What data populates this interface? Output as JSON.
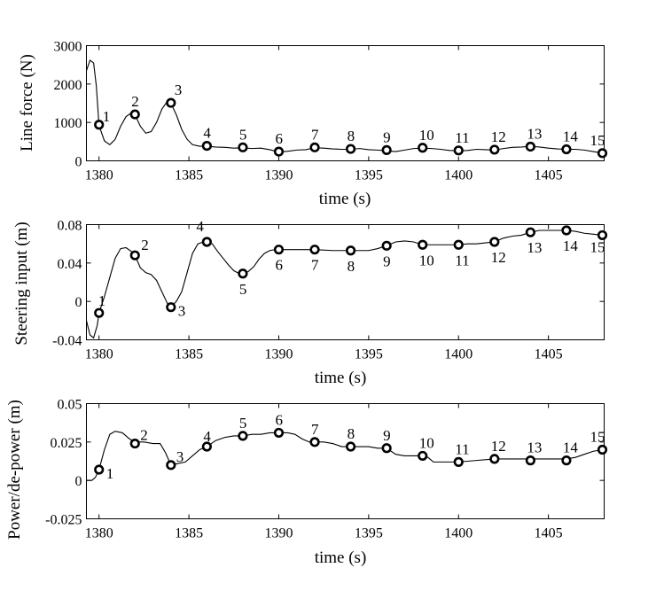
{
  "chart_data": [
    {
      "type": "line",
      "title": "",
      "xlabel": "time (s)",
      "ylabel": "Line force (N)",
      "xlim": [
        1379.3,
        1408.1
      ],
      "ylim": [
        0,
        3000
      ],
      "xticks": [
        1380,
        1385,
        1390,
        1395,
        1400,
        1405
      ],
      "yticks": [
        0,
        1000,
        2000,
        3000
      ],
      "ytick_labels": [
        "0",
        "1000",
        "2000",
        "3000"
      ],
      "series": [
        {
          "name": "line force",
          "x": [
            1379.3,
            1379.5,
            1379.7,
            1379.85,
            1380.0,
            1380.3,
            1380.6,
            1380.9,
            1381.2,
            1381.5,
            1381.8,
            1382.0,
            1382.3,
            1382.6,
            1382.9,
            1383.2,
            1383.5,
            1383.8,
            1384.0,
            1384.3,
            1384.6,
            1384.9,
            1385.2,
            1385.6,
            1386.0,
            1386.5,
            1387.0,
            1387.5,
            1388.0,
            1388.5,
            1389.0,
            1389.5,
            1390.0,
            1390.5,
            1391.0,
            1391.5,
            1392.0,
            1392.5,
            1393.0,
            1393.5,
            1394.0,
            1394.5,
            1395.0,
            1395.5,
            1396.0,
            1396.5,
            1397.0,
            1397.5,
            1398.0,
            1398.5,
            1399.0,
            1399.5,
            1400.0,
            1400.5,
            1401.0,
            1401.5,
            1402.0,
            1402.5,
            1403.0,
            1403.5,
            1404.0,
            1404.5,
            1405.0,
            1405.5,
            1406.0,
            1406.5,
            1407.0,
            1407.5,
            1408.0,
            1408.1
          ],
          "y": [
            2350,
            2620,
            2550,
            1950,
            920,
            520,
            420,
            560,
            900,
            1150,
            1250,
            1200,
            900,
            720,
            760,
            1000,
            1350,
            1550,
            1500,
            1200,
            820,
            560,
            420,
            380,
            380,
            360,
            350,
            330,
            340,
            320,
            330,
            290,
            230,
            250,
            280,
            290,
            340,
            330,
            310,
            300,
            300,
            320,
            290,
            280,
            260,
            240,
            280,
            320,
            330,
            320,
            300,
            270,
            260,
            270,
            300,
            290,
            280,
            320,
            350,
            360,
            380,
            360,
            330,
            310,
            300,
            300,
            280,
            240,
            200,
            190
          ]
        }
      ],
      "markers": [
        {
          "label": "1",
          "x": 1380,
          "y": 940
        },
        {
          "label": "2",
          "x": 1382,
          "y": 1210
        },
        {
          "label": "3",
          "x": 1384,
          "y": 1510
        },
        {
          "label": "4",
          "x": 1386,
          "y": 390
        },
        {
          "label": "5",
          "x": 1388,
          "y": 350
        },
        {
          "label": "6",
          "x": 1390,
          "y": 240
        },
        {
          "label": "7",
          "x": 1392,
          "y": 350
        },
        {
          "label": "8",
          "x": 1394,
          "y": 310
        },
        {
          "label": "9",
          "x": 1396,
          "y": 280
        },
        {
          "label": "10",
          "x": 1398,
          "y": 340
        },
        {
          "label": "11",
          "x": 1400,
          "y": 270
        },
        {
          "label": "12",
          "x": 1402,
          "y": 290
        },
        {
          "label": "13",
          "x": 1404,
          "y": 370
        },
        {
          "label": "14",
          "x": 1406,
          "y": 300
        },
        {
          "label": "15",
          "x": 1408,
          "y": 200
        }
      ]
    },
    {
      "type": "line",
      "title": "",
      "xlabel": "time (s)",
      "ylabel": "Steering input (m)",
      "xlim": [
        1379.3,
        1408.1
      ],
      "ylim": [
        -0.04,
        0.08
      ],
      "xticks": [
        1380,
        1385,
        1390,
        1395,
        1400,
        1405
      ],
      "yticks": [
        -0.04,
        0,
        0.04,
        0.08
      ],
      "ytick_labels": [
        "-0.04",
        "0",
        "0.04",
        "0.08"
      ],
      "series": [
        {
          "name": "steering input",
          "x": [
            1379.3,
            1379.5,
            1379.7,
            1379.9,
            1380.0,
            1380.3,
            1380.6,
            1380.9,
            1381.2,
            1381.5,
            1381.8,
            1382.0,
            1382.3,
            1382.6,
            1382.9,
            1383.2,
            1383.5,
            1383.8,
            1384.0,
            1384.3,
            1384.6,
            1384.9,
            1385.2,
            1385.5,
            1385.8,
            1386.0,
            1386.3,
            1386.6,
            1386.9,
            1387.2,
            1387.5,
            1387.8,
            1388.0,
            1388.3,
            1388.6,
            1388.9,
            1389.2,
            1389.5,
            1389.8,
            1390.0,
            1391.0,
            1392.0,
            1393.0,
            1394.0,
            1395.0,
            1395.5,
            1396.0,
            1396.5,
            1397.0,
            1397.5,
            1398.0,
            1399.0,
            1400.0,
            1400.5,
            1401.0,
            1401.5,
            1402.0,
            1402.5,
            1403.0,
            1403.5,
            1404.0,
            1404.5,
            1405.0,
            1405.5,
            1406.0,
            1406.5,
            1407.0,
            1407.5,
            1408.0,
            1408.1
          ],
          "y": [
            -0.02,
            -0.035,
            -0.038,
            -0.025,
            -0.012,
            0.005,
            0.025,
            0.045,
            0.055,
            0.056,
            0.052,
            0.048,
            0.035,
            0.03,
            0.028,
            0.022,
            0.01,
            -0.002,
            -0.006,
            0.0,
            0.01,
            0.03,
            0.05,
            0.06,
            0.062,
            0.062,
            0.06,
            0.052,
            0.045,
            0.038,
            0.032,
            0.029,
            0.029,
            0.031,
            0.036,
            0.044,
            0.05,
            0.053,
            0.054,
            0.054,
            0.054,
            0.054,
            0.053,
            0.053,
            0.053,
            0.055,
            0.058,
            0.062,
            0.063,
            0.062,
            0.059,
            0.059,
            0.059,
            0.06,
            0.06,
            0.061,
            0.062,
            0.066,
            0.068,
            0.069,
            0.072,
            0.074,
            0.074,
            0.074,
            0.074,
            0.073,
            0.071,
            0.07,
            0.069,
            0.069
          ]
        }
      ],
      "markers": [
        {
          "label": "1",
          "x": 1380,
          "y": -0.012
        },
        {
          "label": "2",
          "x": 1382,
          "y": 0.048
        },
        {
          "label": "3",
          "x": 1384,
          "y": -0.006
        },
        {
          "label": "4",
          "x": 1386,
          "y": 0.062
        },
        {
          "label": "5",
          "x": 1388,
          "y": 0.029
        },
        {
          "label": "6",
          "x": 1390,
          "y": 0.054
        },
        {
          "label": "7",
          "x": 1392,
          "y": 0.054
        },
        {
          "label": "8",
          "x": 1394,
          "y": 0.053
        },
        {
          "label": "9",
          "x": 1396,
          "y": 0.058
        },
        {
          "label": "10",
          "x": 1398,
          "y": 0.059
        },
        {
          "label": "11",
          "x": 1400,
          "y": 0.059
        },
        {
          "label": "12",
          "x": 1402,
          "y": 0.062
        },
        {
          "label": "13",
          "x": 1404,
          "y": 0.072
        },
        {
          "label": "14",
          "x": 1406,
          "y": 0.074
        },
        {
          "label": "15",
          "x": 1408,
          "y": 0.069
        }
      ]
    },
    {
      "type": "line",
      "title": "",
      "xlabel": "time (s)",
      "ylabel": "Power/de-power (m)",
      "xlim": [
        1379.3,
        1408.1
      ],
      "ylim": [
        -0.025,
        0.05
      ],
      "xticks": [
        1380,
        1385,
        1390,
        1395,
        1400,
        1405
      ],
      "yticks": [
        -0.025,
        0,
        0.025,
        0.05
      ],
      "ytick_labels": [
        "-0.025",
        "0",
        "0.025",
        "0.05"
      ],
      "series": [
        {
          "name": "power/de-power",
          "x": [
            1379.3,
            1379.6,
            1379.8,
            1380.0,
            1380.3,
            1380.6,
            1380.9,
            1381.3,
            1381.7,
            1382.0,
            1382.5,
            1383.0,
            1383.4,
            1383.7,
            1384.0,
            1384.4,
            1384.8,
            1385.2,
            1385.6,
            1386.0,
            1386.5,
            1387.0,
            1387.5,
            1388.0,
            1388.5,
            1389.0,
            1389.5,
            1390.0,
            1390.5,
            1390.9,
            1391.3,
            1391.7,
            1392.0,
            1392.5,
            1393.0,
            1393.5,
            1394.0,
            1394.5,
            1395.0,
            1395.5,
            1396.0,
            1396.5,
            1397.0,
            1397.5,
            1398.0,
            1398.3,
            1398.6,
            1399.0,
            1400.0,
            1401.0,
            1402.0,
            1403.0,
            1404.0,
            1405.0,
            1406.0,
            1406.5,
            1407.0,
            1407.5,
            1408.0,
            1408.1
          ],
          "y": [
            0.0,
            0.0,
            0.002,
            0.007,
            0.02,
            0.03,
            0.032,
            0.031,
            0.027,
            0.025,
            0.025,
            0.024,
            0.024,
            0.018,
            0.01,
            0.011,
            0.012,
            0.016,
            0.02,
            0.022,
            0.026,
            0.028,
            0.029,
            0.029,
            0.03,
            0.03,
            0.031,
            0.031,
            0.031,
            0.03,
            0.027,
            0.025,
            0.025,
            0.025,
            0.024,
            0.022,
            0.022,
            0.022,
            0.022,
            0.021,
            0.021,
            0.017,
            0.016,
            0.016,
            0.016,
            0.015,
            0.012,
            0.012,
            0.012,
            0.013,
            0.014,
            0.014,
            0.014,
            0.014,
            0.014,
            0.015,
            0.017,
            0.019,
            0.02,
            0.02
          ]
        }
      ],
      "markers": [
        {
          "label": "1",
          "x": 1380,
          "y": 0.007
        },
        {
          "label": "2",
          "x": 1382,
          "y": 0.024
        },
        {
          "label": "3",
          "x": 1384,
          "y": 0.01
        },
        {
          "label": "4",
          "x": 1386,
          "y": 0.022
        },
        {
          "label": "5",
          "x": 1388,
          "y": 0.029
        },
        {
          "label": "6",
          "x": 1390,
          "y": 0.031
        },
        {
          "label": "7",
          "x": 1392,
          "y": 0.025
        },
        {
          "label": "8",
          "x": 1394,
          "y": 0.022
        },
        {
          "label": "9",
          "x": 1396,
          "y": 0.021
        },
        {
          "label": "10",
          "x": 1398,
          "y": 0.016
        },
        {
          "label": "11",
          "x": 1400,
          "y": 0.012
        },
        {
          "label": "12",
          "x": 1402,
          "y": 0.014
        },
        {
          "label": "13",
          "x": 1404,
          "y": 0.013
        },
        {
          "label": "14",
          "x": 1406,
          "y": 0.013
        },
        {
          "label": "15",
          "x": 1408,
          "y": 0.02
        }
      ]
    }
  ]
}
